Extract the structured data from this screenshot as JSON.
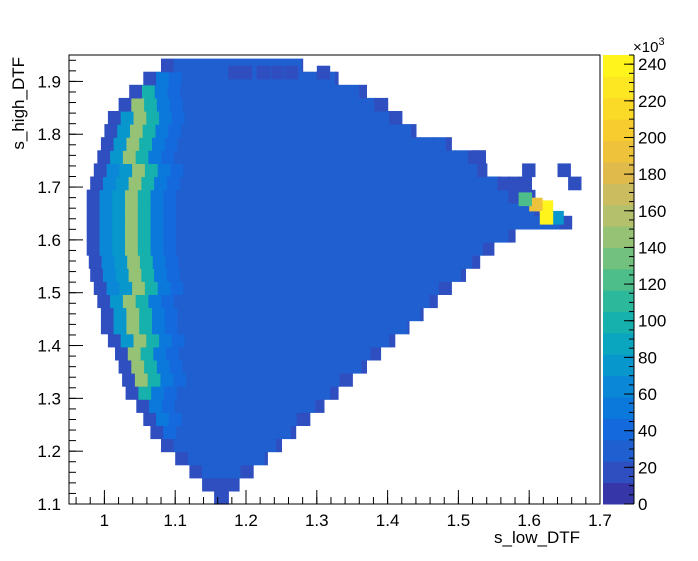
{
  "chart_data": {
    "type": "heatmap",
    "title": "",
    "xlabel": "s_low_DTF",
    "ylabel": "s_high_DTF",
    "xlim": [
      0.95,
      1.7
    ],
    "ylim": [
      1.1,
      1.95
    ],
    "x_ticks": [
      "1",
      "1.1",
      "1.2",
      "1.3",
      "1.4",
      "1.5",
      "1.6",
      "1.7"
    ],
    "y_ticks": [
      "1.1",
      "1.2",
      "1.3",
      "1.4",
      "1.5",
      "1.6",
      "1.7",
      "1.8",
      "1.9"
    ],
    "colorbar": {
      "range": [
        0,
        245
      ],
      "multiplier": "×10",
      "multiplier_exp": "3",
      "ticks": [
        "0",
        "20",
        "40",
        "60",
        "80",
        "100",
        "120",
        "140",
        "160",
        "180",
        "200",
        "220",
        "240"
      ]
    },
    "grid": false,
    "palette": [
      "#3636a8",
      "#2f4fc0",
      "#1f5fd0",
      "#1469dc",
      "#0b78dc",
      "#0a87d6",
      "#0897cc",
      "#0aa5bf",
      "#16b0ad",
      "#2cb99b",
      "#4dbe8a",
      "#72c17e",
      "#95c274",
      "#b4c06c",
      "#ccbc60",
      "#e0bb4c",
      "#eec23a",
      "#f7cc2e",
      "#fbd927",
      "#fde722",
      "#fff41c"
    ],
    "bins": {
      "x_start": 0.96,
      "y_start": 1.1,
      "width": 0.01805,
      "height": 0.0248,
      "rows": [
        {
          "x_from": 1.155,
          "x_to": 1.175,
          "value": 10
        },
        {
          "x_from": 1.138,
          "x_to": 1.19,
          "value": 14
        },
        {
          "x_from": 1.12,
          "x_to": 1.21,
          "value": 30
        },
        {
          "x_from": 1.1,
          "x_to": 1.23,
          "value": 30
        },
        {
          "x_from": 1.08,
          "x_to": 1.25,
          "value": 30
        },
        {
          "x_from": 1.065,
          "x_to": 1.27,
          "value": 30
        },
        {
          "x_from": 1.055,
          "x_to": 1.29,
          "value": 30
        },
        {
          "x_from": 1.045,
          "x_to": 1.31,
          "value": 30
        },
        {
          "x_from": 1.03,
          "x_to": 1.33,
          "value": 30
        },
        {
          "x_from": 1.025,
          "x_to": 1.35,
          "value": 30
        },
        {
          "x_from": 1.02,
          "x_to": 1.37,
          "value": 30
        },
        {
          "x_from": 1.015,
          "x_to": 1.39,
          "value": 30
        },
        {
          "x_from": 1.005,
          "x_to": 1.41,
          "value": 30
        },
        {
          "x_from": 0.995,
          "x_to": 1.43,
          "value": 30
        },
        {
          "x_from": 0.995,
          "x_to": 1.45,
          "value": 30
        },
        {
          "x_from": 0.99,
          "x_to": 1.47,
          "value": 30
        },
        {
          "x_from": 0.985,
          "x_to": 1.49,
          "value": 30
        },
        {
          "x_from": 0.98,
          "x_to": 1.51,
          "value": 30
        },
        {
          "x_from": 0.978,
          "x_to": 1.53,
          "value": 30
        },
        {
          "x_from": 0.975,
          "x_to": 1.55,
          "value": 30
        },
        {
          "x_from": 0.975,
          "x_to": 1.58,
          "value": 30
        },
        {
          "x_from": 0.975,
          "x_to": 1.66,
          "value": 30
        },
        {
          "x_from": 0.975,
          "x_to": 1.62,
          "value": 30
        },
        {
          "x_from": 0.975,
          "x_to": 1.58,
          "value": 30
        },
        {
          "x_from": 0.98,
          "x_to": 1.56,
          "value": 30
        },
        {
          "x_from": 0.985,
          "x_to": 1.54,
          "value": 30
        },
        {
          "x_from": 0.99,
          "x_to": 1.52,
          "value": 30
        },
        {
          "x_from": 0.995,
          "x_to": 1.49,
          "value": 30
        },
        {
          "x_from": 1.0,
          "x_to": 1.44,
          "value": 30
        },
        {
          "x_from": 1.005,
          "x_to": 1.42,
          "value": 30
        },
        {
          "x_from": 1.02,
          "x_to": 1.4,
          "value": 30
        },
        {
          "x_from": 1.035,
          "x_to": 1.37,
          "value": 30
        },
        {
          "x_from": 1.055,
          "x_to": 1.33,
          "value": 30
        },
        {
          "x_from": 1.08,
          "x_to": 1.28,
          "value": 30
        }
      ],
      "extra_cells": [
        {
          "x": 1.575,
          "y": 1.67,
          "value": 18
        },
        {
          "x": 1.59,
          "y": 1.67,
          "value": 18
        },
        {
          "x": 1.555,
          "y": 1.695,
          "value": 18
        },
        {
          "x": 1.57,
          "y": 1.695,
          "value": 18
        },
        {
          "x": 1.585,
          "y": 1.695,
          "value": 18
        },
        {
          "x": 1.52,
          "y": 1.745,
          "value": 18
        },
        {
          "x": 1.59,
          "y": 1.72,
          "value": 18
        },
        {
          "x": 1.3,
          "y": 1.905,
          "value": 18
        },
        {
          "x": 1.175,
          "y": 1.905,
          "value": 18
        },
        {
          "x": 1.19,
          "y": 1.905,
          "value": 18
        },
        {
          "x": 1.215,
          "y": 1.905,
          "value": 18
        },
        {
          "x": 1.235,
          "y": 1.905,
          "value": 18
        },
        {
          "x": 1.255,
          "y": 1.905,
          "value": 18
        },
        {
          "x": 1.64,
          "y": 1.72,
          "value": 18
        },
        {
          "x": 1.655,
          "y": 1.695,
          "value": 18
        },
        {
          "x": 1.615,
          "y": 1.65,
          "value": 245
        },
        {
          "x": 1.6,
          "y": 1.655,
          "value": 190
        },
        {
          "x": 1.585,
          "y": 1.665,
          "value": 120
        },
        {
          "x": 1.63,
          "y": 1.63,
          "value": 75
        },
        {
          "x": 1.615,
          "y": 1.63,
          "value": 245
        }
      ],
      "band_columns": [
        {
          "x": 0.98,
          "value": 55
        },
        {
          "x": 0.998,
          "value": 60
        },
        {
          "x": 1.016,
          "value": 70
        },
        {
          "x": 1.034,
          "value": 140
        },
        {
          "x": 1.052,
          "value": 100
        },
        {
          "x": 1.07,
          "value": 55
        },
        {
          "x": 1.088,
          "value": 40
        }
      ]
    }
  }
}
